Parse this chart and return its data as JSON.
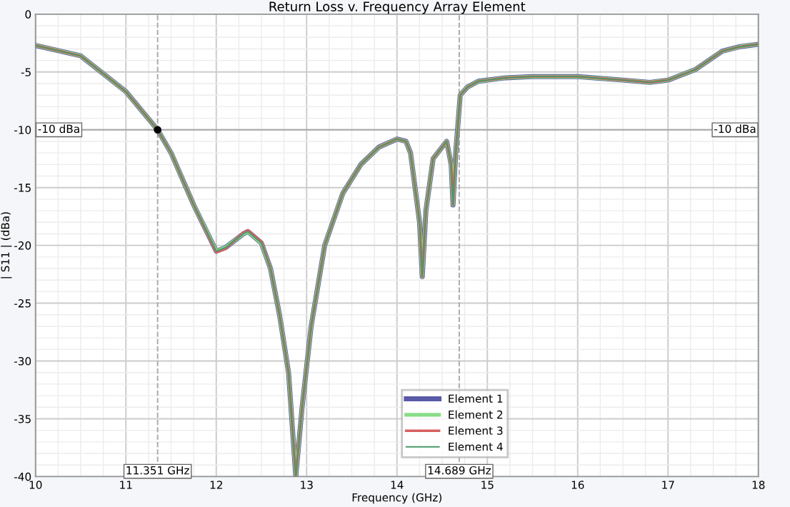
{
  "chart_data": {
    "type": "line",
    "title": "Return Loss v. Frequency Array Element",
    "xlabel": "Frequency (GHz)",
    "ylabel": "| S11 | (dBa)",
    "xlim": [
      10,
      18
    ],
    "xticks": [
      10,
      11,
      12,
      13,
      14,
      15,
      16,
      17,
      18
    ],
    "ylim": [
      -40,
      0
    ],
    "yticks": [
      -40,
      -35,
      -30,
      -25,
      -20,
      -15,
      -10,
      -5,
      0
    ],
    "grid": true,
    "legend": "bottom",
    "marker": "none",
    "line_style": "solid",
    "ref_lines": [
      {
        "axis": "y",
        "value": -10,
        "label": "-10 dBa"
      },
      {
        "axis": "x",
        "value": 11.351,
        "label": "11.351 GHz",
        "line_style": "dashed"
      },
      {
        "axis": "x",
        "value": 14.689,
        "label": "14.689 GHz",
        "line_style": "dashed"
      }
    ],
    "x": [
      10,
      10.5,
      11,
      11.351,
      11.5,
      11.75,
      12,
      12.1,
      12.3,
      12.35,
      12.5,
      12.6,
      12.7,
      12.8,
      12.88,
      12.95,
      13.05,
      13.2,
      13.4,
      13.6,
      13.8,
      14,
      14.1,
      14.15,
      14.25,
      14.28,
      14.32,
      14.4,
      14.55,
      14.6,
      14.62,
      14.65,
      14.7,
      14.78,
      14.9,
      15.2,
      15.5,
      16,
      16.5,
      16.8,
      17,
      17.3,
      17.6,
      17.8,
      18
    ],
    "series": [
      {
        "name": "Element 1",
        "color": "#5a5aa8",
        "values": [
          -2.7,
          -3.6,
          -6.7,
          -10,
          -12,
          -16.5,
          -20.5,
          -20.2,
          -19,
          -18.8,
          -19.8,
          -22,
          -26,
          -31,
          -40,
          -34,
          -27,
          -20,
          -15.5,
          -13,
          -11.5,
          -10.8,
          -11,
          -12,
          -18,
          -22.7,
          -17,
          -12.5,
          -11,
          -13,
          -16.5,
          -12,
          -7,
          -6.3,
          -5.8,
          -5.5,
          -5.4,
          -5.4,
          -5.7,
          -5.9,
          -5.7,
          -4.8,
          -3.2,
          -2.8,
          -2.6
        ]
      },
      {
        "name": "Element 2",
        "color": "#88dd88",
        "values": [
          -2.7,
          -3.6,
          -6.7,
          -10,
          -12,
          -16.5,
          -20.5,
          -20.2,
          -19,
          -18.8,
          -19.8,
          -22,
          -26,
          -31,
          -40,
          -34,
          -27,
          -20,
          -15.5,
          -13,
          -11.5,
          -10.8,
          -11,
          -12,
          -18,
          -22.7,
          -17,
          -12.5,
          -11,
          -13,
          -16.5,
          -12,
          -7,
          -6.3,
          -5.8,
          -5.5,
          -5.4,
          -5.4,
          -5.7,
          -5.9,
          -5.7,
          -4.8,
          -3.2,
          -2.8,
          -2.6
        ]
      },
      {
        "name": "Element 3",
        "color": "#d86060",
        "values": [
          -2.7,
          -3.6,
          -6.7,
          -10,
          -12,
          -16.5,
          -20.6,
          -20.3,
          -18.9,
          -18.7,
          -19.7,
          -22,
          -26,
          -31,
          -40,
          -34,
          -27,
          -20,
          -15.5,
          -13,
          -11.5,
          -10.8,
          -11,
          -12,
          -18,
          -22.7,
          -17,
          -12.5,
          -11,
          -13,
          -16.5,
          -12,
          -7,
          -6.3,
          -5.8,
          -5.5,
          -5.4,
          -5.4,
          -5.7,
          -5.9,
          -5.7,
          -4.8,
          -3.2,
          -2.8,
          -2.6
        ]
      },
      {
        "name": "Element 4",
        "color": "#4a9a6a",
        "values": [
          -2.7,
          -3.6,
          -6.7,
          -10,
          -12,
          -16.5,
          -20.5,
          -20.2,
          -19,
          -18.8,
          -19.8,
          -22,
          -26,
          -31,
          -40,
          -34,
          -27,
          -20,
          -15.5,
          -13,
          -11.5,
          -10.8,
          -11,
          -12,
          -18,
          -22.7,
          -17,
          -12.5,
          -11,
          -13,
          -16.5,
          -12,
          -7,
          -6.3,
          -5.8,
          -5.5,
          -5.4,
          -5.4,
          -5.7,
          -5.9,
          -5.7,
          -4.8,
          -3.2,
          -2.8,
          -2.6
        ]
      },
      {
        "type": "scatter",
        "marker": "circle",
        "x": [
          11.351
        ],
        "values": [
          -10
        ],
        "color": "#000000"
      }
    ]
  }
}
